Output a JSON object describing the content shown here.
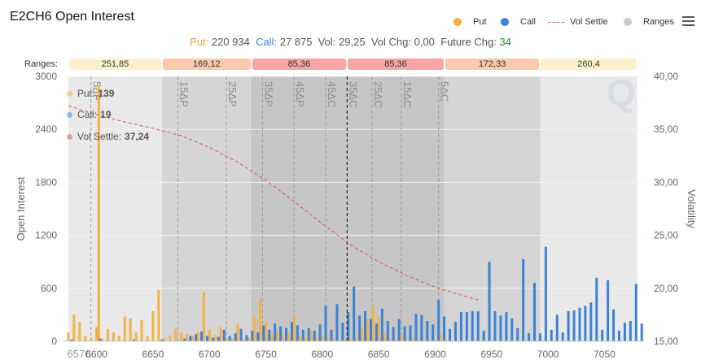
{
  "title": "E2CH6 Open Interest",
  "legend": [
    {
      "label": "Put",
      "color": "#f5b041"
    },
    {
      "label": "Call",
      "color": "#3b82d6"
    },
    {
      "label": "Vol Settle",
      "color": "#d9534f"
    },
    {
      "label": "Ranges",
      "color": "#cccccc"
    }
  ],
  "summary": {
    "put_label": "Put:",
    "put_value": "220 934",
    "call_label": "Call:",
    "call_value": "27 875",
    "vol_label": "Vol:",
    "vol_value": "29,25",
    "volchg_label": "Vol Chg:",
    "volchg_value": "0,00",
    "futchg_label": "Future Chg:",
    "futchg_value": "34"
  },
  "ranges_label": "Ranges:",
  "ranges": [
    {
      "value": "251,85",
      "level": 0
    },
    {
      "value": "169,12",
      "level": 1
    },
    {
      "value": "85,36",
      "level": 2
    },
    {
      "value": "85,36",
      "level": 2
    },
    {
      "value": "172,33",
      "level": 1
    },
    {
      "value": "260,4",
      "level": 0
    }
  ],
  "tooltip": {
    "put_label": "Put:",
    "put_value": "139",
    "call_label": "Call:",
    "call_value": "19",
    "vol_label": "Vol Settle:",
    "vol_value": "37,24"
  },
  "colors": {
    "put": "#f5b041",
    "call": "#3b82d6",
    "vol": "#d9534f"
  },
  "chart_data": {
    "type": "bar",
    "ylabel": "Open Interest",
    "y2label": "Volatility",
    "xlim": [
      6570,
      7085
    ],
    "ylim": [
      0,
      3000
    ],
    "y2lim": [
      15,
      40
    ],
    "x_ticks": [
      6570,
      6600,
      6650,
      6700,
      6750,
      6800,
      6850,
      6900,
      6950,
      7000,
      7050
    ],
    "y_ticks": [
      "0",
      "600",
      "1200",
      "1800",
      "2400",
      "3000"
    ],
    "y2_ticks": [
      "15,00",
      "20,00",
      "25,00",
      "30,00",
      "35,00",
      "40,00"
    ],
    "range_bands": [
      [
        6575,
        6658
      ],
      [
        6658,
        6737
      ],
      [
        6737,
        6822
      ],
      [
        6822,
        6908
      ],
      [
        6908,
        6993
      ],
      [
        6993,
        7079
      ]
    ],
    "delta_lines": [
      {
        "label": "5ΔP",
        "x": 6595
      },
      {
        "label": "15ΔP",
        "x": 6672
      },
      {
        "label": "25ΔP",
        "x": 6715
      },
      {
        "label": "35ΔP",
        "x": 6747
      },
      {
        "label": "45ΔP",
        "x": 6775
      },
      {
        "label": "45ΔC",
        "x": 6803
      },
      {
        "label": "35ΔC",
        "x": 6822
      },
      {
        "label": "25ΔC",
        "x": 6844
      },
      {
        "label": "15ΔC",
        "x": 6870
      },
      {
        "label": "5ΔC",
        "x": 6903
      }
    ],
    "current_price": 6822,
    "put_series": {
      "name": "Put",
      "points": [
        [
          6575,
          100
        ],
        [
          6580,
          300
        ],
        [
          6585,
          220
        ],
        [
          6590,
          60
        ],
        [
          6595,
          40
        ],
        [
          6600,
          160
        ],
        [
          6602,
          2900
        ],
        [
          6605,
          30
        ],
        [
          6610,
          140
        ],
        [
          6615,
          100
        ],
        [
          6620,
          60
        ],
        [
          6625,
          280
        ],
        [
          6630,
          260
        ],
        [
          6635,
          100
        ],
        [
          6640,
          240
        ],
        [
          6645,
          60
        ],
        [
          6650,
          340
        ],
        [
          6655,
          580
        ],
        [
          6660,
          30
        ],
        [
          6665,
          60
        ],
        [
          6670,
          140
        ],
        [
          6675,
          100
        ],
        [
          6680,
          80
        ],
        [
          6685,
          60
        ],
        [
          6690,
          100
        ],
        [
          6695,
          560
        ],
        [
          6700,
          130
        ],
        [
          6705,
          70
        ],
        [
          6710,
          160
        ],
        [
          6715,
          40
        ],
        [
          6720,
          30
        ],
        [
          6725,
          200
        ],
        [
          6730,
          30
        ],
        [
          6735,
          40
        ],
        [
          6740,
          280
        ],
        [
          6745,
          480
        ],
        [
          6750,
          220
        ],
        [
          6755,
          90
        ],
        [
          6760,
          120
        ],
        [
          6765,
          80
        ],
        [
          6770,
          90
        ],
        [
          6775,
          280
        ],
        [
          6780,
          60
        ],
        [
          6785,
          40
        ],
        [
          6790,
          120
        ],
        [
          6795,
          30
        ],
        [
          6800,
          60
        ],
        [
          6805,
          40
        ],
        [
          6810,
          20
        ],
        [
          6815,
          10
        ],
        [
          6820,
          20
        ],
        [
          6825,
          30
        ],
        [
          6830,
          40
        ],
        [
          6835,
          160
        ],
        [
          6840,
          250
        ],
        [
          6845,
          400
        ],
        [
          6850,
          280
        ],
        [
          6855,
          90
        ],
        [
          6860,
          30
        ],
        [
          6865,
          20
        ],
        [
          6870,
          70
        ],
        [
          6875,
          10
        ],
        [
          6880,
          30
        ],
        [
          6885,
          20
        ],
        [
          6890,
          10
        ],
        [
          6895,
          20
        ],
        [
          6900,
          10
        ],
        [
          6905,
          80
        ]
      ]
    },
    "call_series": {
      "name": "Call",
      "points": [
        [
          6578,
          20
        ],
        [
          6603,
          30
        ],
        [
          6633,
          20
        ],
        [
          6658,
          20
        ],
        [
          6678,
          30
        ],
        [
          6683,
          60
        ],
        [
          6688,
          80
        ],
        [
          6693,
          110
        ],
        [
          6698,
          60
        ],
        [
          6703,
          40
        ],
        [
          6708,
          50
        ],
        [
          6713,
          130
        ],
        [
          6718,
          60
        ],
        [
          6723,
          90
        ],
        [
          6728,
          140
        ],
        [
          6733,
          70
        ],
        [
          6738,
          120
        ],
        [
          6743,
          100
        ],
        [
          6748,
          180
        ],
        [
          6753,
          130
        ],
        [
          6758,
          200
        ],
        [
          6763,
          170
        ],
        [
          6768,
          150
        ],
        [
          6773,
          220
        ],
        [
          6778,
          180
        ],
        [
          6783,
          130
        ],
        [
          6788,
          150
        ],
        [
          6793,
          120
        ],
        [
          6798,
          190
        ],
        [
          6803,
          400
        ],
        [
          6808,
          130
        ],
        [
          6813,
          420
        ],
        [
          6818,
          210
        ],
        [
          6823,
          330
        ],
        [
          6828,
          620
        ],
        [
          6833,
          290
        ],
        [
          6838,
          340
        ],
        [
          6843,
          250
        ],
        [
          6848,
          200
        ],
        [
          6853,
          370
        ],
        [
          6858,
          230
        ],
        [
          6863,
          160
        ],
        [
          6868,
          250
        ],
        [
          6873,
          170
        ],
        [
          6878,
          180
        ],
        [
          6883,
          310
        ],
        [
          6888,
          300
        ],
        [
          6893,
          230
        ],
        [
          6898,
          190
        ],
        [
          6903,
          470
        ],
        [
          6908,
          280
        ],
        [
          6913,
          140
        ],
        [
          6918,
          220
        ],
        [
          6923,
          330
        ],
        [
          6928,
          330
        ],
        [
          6933,
          340
        ],
        [
          6938,
          340
        ],
        [
          6943,
          120
        ],
        [
          6948,
          900
        ],
        [
          6953,
          340
        ],
        [
          6958,
          290
        ],
        [
          6963,
          330
        ],
        [
          6968,
          260
        ],
        [
          6973,
          150
        ],
        [
          6978,
          930
        ],
        [
          6983,
          90
        ],
        [
          6988,
          660
        ],
        [
          6993,
          90
        ],
        [
          6998,
          1070
        ],
        [
          7003,
          130
        ],
        [
          7008,
          300
        ],
        [
          7013,
          100
        ],
        [
          7018,
          340
        ],
        [
          7023,
          350
        ],
        [
          7028,
          380
        ],
        [
          7033,
          400
        ],
        [
          7038,
          440
        ],
        [
          7043,
          720
        ],
        [
          7048,
          130
        ],
        [
          7053,
          690
        ],
        [
          7058,
          360
        ],
        [
          7063,
          120
        ],
        [
          7068,
          210
        ],
        [
          7073,
          230
        ],
        [
          7078,
          650
        ],
        [
          7083,
          200
        ]
      ]
    },
    "vol_series": {
      "name": "Vol Settle",
      "points": [
        [
          6575,
          37.24
        ],
        [
          6600,
          36.4
        ],
        [
          6625,
          35.7
        ],
        [
          6650,
          35.1
        ],
        [
          6675,
          34.4
        ],
        [
          6700,
          33.3
        ],
        [
          6725,
          31.9
        ],
        [
          6750,
          30.2
        ],
        [
          6775,
          28.2
        ],
        [
          6800,
          26.1
        ],
        [
          6825,
          24.1
        ],
        [
          6850,
          22.5
        ],
        [
          6875,
          21.2
        ],
        [
          6900,
          20.1
        ],
        [
          6925,
          19.3
        ],
        [
          6938,
          18.9
        ]
      ]
    }
  }
}
